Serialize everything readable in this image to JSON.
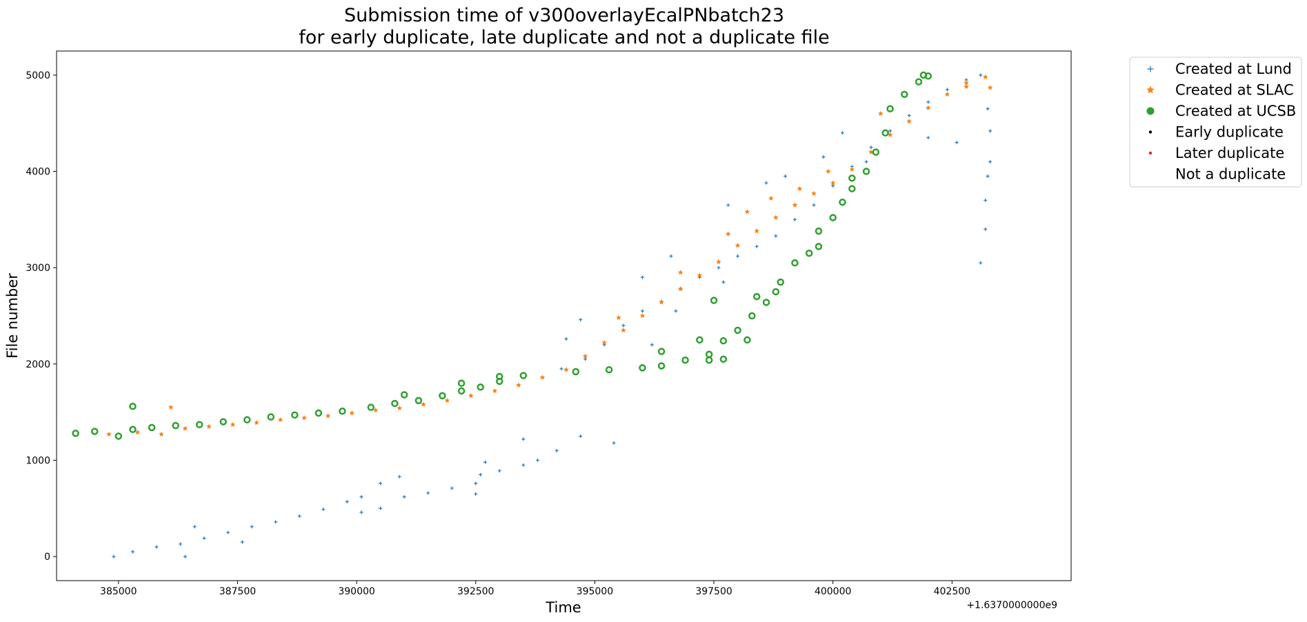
{
  "chart_data": {
    "type": "scatter",
    "title": "Submission time of v300overlayEcalPNbatch23",
    "subtitle": "for early duplicate, late duplicate and not a duplicate file",
    "xlabel": "Time",
    "ylabel": "File number",
    "x_offset_label": "+1.6370000000e9",
    "xlim": [
      383700,
      405000
    ],
    "ylim": [
      -250,
      5250
    ],
    "x_ticks": [
      {
        "value": 385000,
        "label": "385000"
      },
      {
        "value": 387500,
        "label": "387500"
      },
      {
        "value": 390000,
        "label": "390000"
      },
      {
        "value": 392500,
        "label": "392500"
      },
      {
        "value": 395000,
        "label": "395000"
      },
      {
        "value": 397500,
        "label": "397500"
      },
      {
        "value": 400000,
        "label": "400000"
      },
      {
        "value": 402500,
        "label": "402500"
      }
    ],
    "y_ticks": [
      {
        "value": 0,
        "label": "0"
      },
      {
        "value": 1000,
        "label": "1000"
      },
      {
        "value": 2000,
        "label": "2000"
      },
      {
        "value": 3000,
        "label": "3000"
      },
      {
        "value": 4000,
        "label": "4000"
      },
      {
        "value": 5000,
        "label": "5000"
      }
    ],
    "grid": false,
    "legend_position": "outside-top-right",
    "legend": [
      {
        "label": "Created at Lund",
        "marker": "plus",
        "color": "#1f77b4"
      },
      {
        "label": "Created at SLAC",
        "marker": "star",
        "color": "#ff7f0e"
      },
      {
        "label": "Created at UCSB",
        "marker": "circle",
        "color": "#2ca02c"
      },
      {
        "label": "Early duplicate",
        "marker": "dot",
        "color": "#000000"
      },
      {
        "label": "Later duplicate",
        "marker": "dot",
        "color": "#d62728"
      },
      {
        "label": "Not a duplicate",
        "marker": "none",
        "color": "#ffffff"
      }
    ],
    "series": [
      {
        "name": "Created at Lund",
        "color": "#1f77b4",
        "marker": "plus",
        "points": [
          [
            384900,
            0
          ],
          [
            385300,
            50
          ],
          [
            385800,
            100
          ],
          [
            386300,
            130
          ],
          [
            386800,
            190
          ],
          [
            387300,
            250
          ],
          [
            387800,
            310
          ],
          [
            388300,
            360
          ],
          [
            388800,
            420
          ],
          [
            389300,
            490
          ],
          [
            389800,
            570
          ],
          [
            390100,
            620
          ],
          [
            390100,
            460
          ],
          [
            390500,
            500
          ],
          [
            390500,
            760
          ],
          [
            390900,
            830
          ],
          [
            391000,
            620
          ],
          [
            391500,
            660
          ],
          [
            392000,
            710
          ],
          [
            392500,
            760
          ],
          [
            392600,
            850
          ],
          [
            393000,
            890
          ],
          [
            393500,
            950
          ],
          [
            393800,
            1000
          ],
          [
            394200,
            1100
          ],
          [
            394700,
            1250
          ],
          [
            386600,
            310
          ],
          [
            386400,
            0
          ],
          [
            387600,
            150
          ],
          [
            392700,
            980
          ],
          [
            393500,
            1220
          ],
          [
            395400,
            1180
          ],
          [
            392500,
            650
          ],
          [
            394300,
            1950
          ],
          [
            394800,
            2050
          ],
          [
            395200,
            2200
          ],
          [
            395600,
            2400
          ],
          [
            396000,
            2550
          ],
          [
            396400,
            2650
          ],
          [
            396800,
            2780
          ],
          [
            397200,
            2900
          ],
          [
            397600,
            3000
          ],
          [
            398000,
            3120
          ],
          [
            398400,
            3220
          ],
          [
            398800,
            3330
          ],
          [
            399200,
            3500
          ],
          [
            399600,
            3650
          ],
          [
            400000,
            3850
          ],
          [
            400400,
            4050
          ],
          [
            400800,
            4250
          ],
          [
            401200,
            4420
          ],
          [
            401600,
            4580
          ],
          [
            402000,
            4720
          ],
          [
            402400,
            4850
          ],
          [
            402800,
            4950
          ],
          [
            403100,
            5000
          ],
          [
            394700,
            2460
          ],
          [
            394400,
            2260
          ],
          [
            396000,
            2900
          ],
          [
            396600,
            3120
          ],
          [
            397800,
            3650
          ],
          [
            398600,
            3880
          ],
          [
            399000,
            3950
          ],
          [
            399800,
            4150
          ],
          [
            400200,
            4400
          ],
          [
            400700,
            4100
          ],
          [
            402000,
            4350
          ],
          [
            402600,
            4300
          ],
          [
            396200,
            2200
          ],
          [
            396700,
            2550
          ],
          [
            397700,
            2850
          ],
          [
            403100,
            3050
          ],
          [
            403200,
            3400
          ],
          [
            403200,
            3700
          ],
          [
            403250,
            3950
          ],
          [
            403300,
            4100
          ],
          [
            403300,
            4420
          ],
          [
            403250,
            4650
          ]
        ]
      },
      {
        "name": "Created at SLAC",
        "color": "#ff7f0e",
        "marker": "star",
        "points": [
          [
            384800,
            1270
          ],
          [
            385400,
            1290
          ],
          [
            385900,
            1270
          ],
          [
            386400,
            1330
          ],
          [
            386900,
            1350
          ],
          [
            387400,
            1370
          ],
          [
            387900,
            1390
          ],
          [
            388400,
            1420
          ],
          [
            388900,
            1440
          ],
          [
            389400,
            1460
          ],
          [
            389900,
            1490
          ],
          [
            390400,
            1520
          ],
          [
            390900,
            1540
          ],
          [
            391400,
            1580
          ],
          [
            391900,
            1620
          ],
          [
            392400,
            1670
          ],
          [
            392900,
            1720
          ],
          [
            393400,
            1780
          ],
          [
            393900,
            1860
          ],
          [
            394400,
            1940
          ],
          [
            394800,
            2080
          ],
          [
            395200,
            2220
          ],
          [
            395600,
            2350
          ],
          [
            396000,
            2500
          ],
          [
            396400,
            2640
          ],
          [
            396800,
            2780
          ],
          [
            397200,
            2920
          ],
          [
            397600,
            3060
          ],
          [
            398000,
            3230
          ],
          [
            398400,
            3380
          ],
          [
            398800,
            3520
          ],
          [
            399200,
            3650
          ],
          [
            399600,
            3770
          ],
          [
            400000,
            3880
          ],
          [
            400400,
            4020
          ],
          [
            400800,
            4200
          ],
          [
            401200,
            4380
          ],
          [
            401600,
            4520
          ],
          [
            402000,
            4660
          ],
          [
            402400,
            4800
          ],
          [
            402800,
            4920
          ],
          [
            403200,
            4980
          ],
          [
            403300,
            4870
          ],
          [
            386100,
            1550
          ],
          [
            395500,
            2480
          ],
          [
            396800,
            2950
          ],
          [
            397800,
            3350
          ],
          [
            398200,
            3580
          ],
          [
            398700,
            3720
          ],
          [
            399300,
            3820
          ],
          [
            399900,
            4000
          ],
          [
            401000,
            4600
          ],
          [
            402800,
            4880
          ]
        ]
      },
      {
        "name": "Created at UCSB",
        "color": "#2ca02c",
        "marker": "circle",
        "points": [
          [
            384100,
            1280
          ],
          [
            384500,
            1300
          ],
          [
            385000,
            1250
          ],
          [
            385300,
            1320
          ],
          [
            385700,
            1340
          ],
          [
            386200,
            1360
          ],
          [
            386700,
            1370
          ],
          [
            387200,
            1400
          ],
          [
            387700,
            1420
          ],
          [
            388200,
            1450
          ],
          [
            388700,
            1470
          ],
          [
            389200,
            1490
          ],
          [
            389700,
            1510
          ],
          [
            390300,
            1550
          ],
          [
            390800,
            1590
          ],
          [
            391300,
            1620
          ],
          [
            391800,
            1670
          ],
          [
            392200,
            1720
          ],
          [
            392600,
            1760
          ],
          [
            393000,
            1820
          ],
          [
            393500,
            1880
          ],
          [
            385300,
            1560
          ],
          [
            392200,
            1800
          ],
          [
            393000,
            1870
          ],
          [
            394600,
            1920
          ],
          [
            395300,
            1940
          ],
          [
            396000,
            1960
          ],
          [
            396400,
            1980
          ],
          [
            396900,
            2040
          ],
          [
            397400,
            2100
          ],
          [
            397200,
            2250
          ],
          [
            397700,
            2240
          ],
          [
            398200,
            2250
          ],
          [
            397500,
            2660
          ],
          [
            398000,
            2350
          ],
          [
            398300,
            2500
          ],
          [
            398600,
            2640
          ],
          [
            398800,
            2750
          ],
          [
            398900,
            2850
          ],
          [
            399200,
            3050
          ],
          [
            399500,
            3150
          ],
          [
            399700,
            3220
          ],
          [
            399700,
            3380
          ],
          [
            400000,
            3520
          ],
          [
            400200,
            3680
          ],
          [
            400400,
            3820
          ],
          [
            400700,
            4000
          ],
          [
            400400,
            3930
          ],
          [
            400900,
            4200
          ],
          [
            401100,
            4400
          ],
          [
            401200,
            4650
          ],
          [
            401500,
            4800
          ],
          [
            401800,
            4930
          ],
          [
            402000,
            4990
          ],
          [
            401900,
            5000
          ],
          [
            391000,
            1680
          ],
          [
            396400,
            2130
          ],
          [
            397400,
            2040
          ],
          [
            397700,
            2050
          ],
          [
            398400,
            2700
          ]
        ]
      }
    ]
  }
}
